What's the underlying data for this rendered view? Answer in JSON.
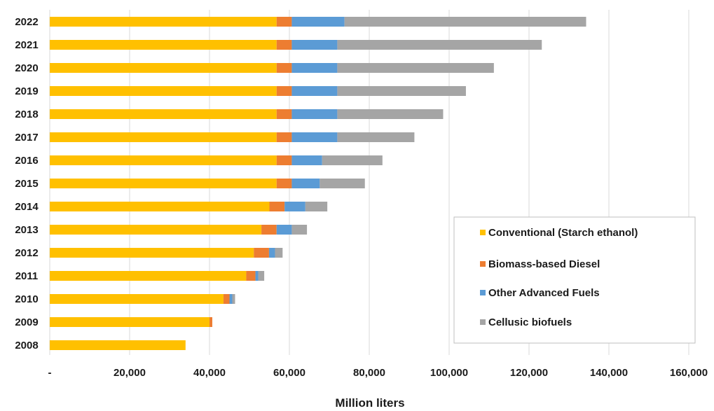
{
  "chart_data": {
    "type": "bar",
    "orientation": "horizontal",
    "stacked": true,
    "title": "",
    "xlabel": "Million liters",
    "ylabel": "",
    "xlim": [
      0,
      160000
    ],
    "x_ticks": [
      0,
      20000,
      40000,
      60000,
      80000,
      100000,
      120000,
      140000,
      160000
    ],
    "x_tick_labels": [
      "-",
      "20,000",
      "40,000",
      "60,000",
      "80,000",
      "100,000",
      "120,000",
      "140,000",
      "160,000"
    ],
    "grid": "vertical",
    "legend_position": "right",
    "categories": [
      "2022",
      "2021",
      "2020",
      "2019",
      "2018",
      "2017",
      "2016",
      "2015",
      "2014",
      "2013",
      "2012",
      "2011",
      "2010",
      "2009",
      "2008"
    ],
    "series": [
      {
        "name": "Conventional (Starch ethanol)",
        "color": "#FFC000",
        "values": [
          56800,
          56800,
          56800,
          56800,
          56800,
          56800,
          56800,
          56800,
          55000,
          53000,
          51100,
          49200,
          43500,
          40000,
          34000
        ]
      },
      {
        "name": "Biomass-based Diesel",
        "color": "#ED7D31",
        "values": [
          3800,
          3800,
          3800,
          3800,
          3800,
          3800,
          3800,
          3800,
          3800,
          3800,
          3800,
          2300,
          1500,
          700,
          0
        ]
      },
      {
        "name": "Other Advanced Fuels",
        "color": "#5B9BD5",
        "values": [
          13200,
          11400,
          11400,
          11400,
          11400,
          11400,
          7600,
          7000,
          5200,
          3800,
          1500,
          700,
          700,
          0,
          0
        ]
      },
      {
        "name": "Cellusic biofuels",
        "color": "#A5A5A5",
        "values": [
          60500,
          51200,
          39200,
          32200,
          26500,
          19300,
          15100,
          11300,
          5500,
          3800,
          1900,
          1500,
          700,
          0,
          0
        ]
      }
    ]
  }
}
